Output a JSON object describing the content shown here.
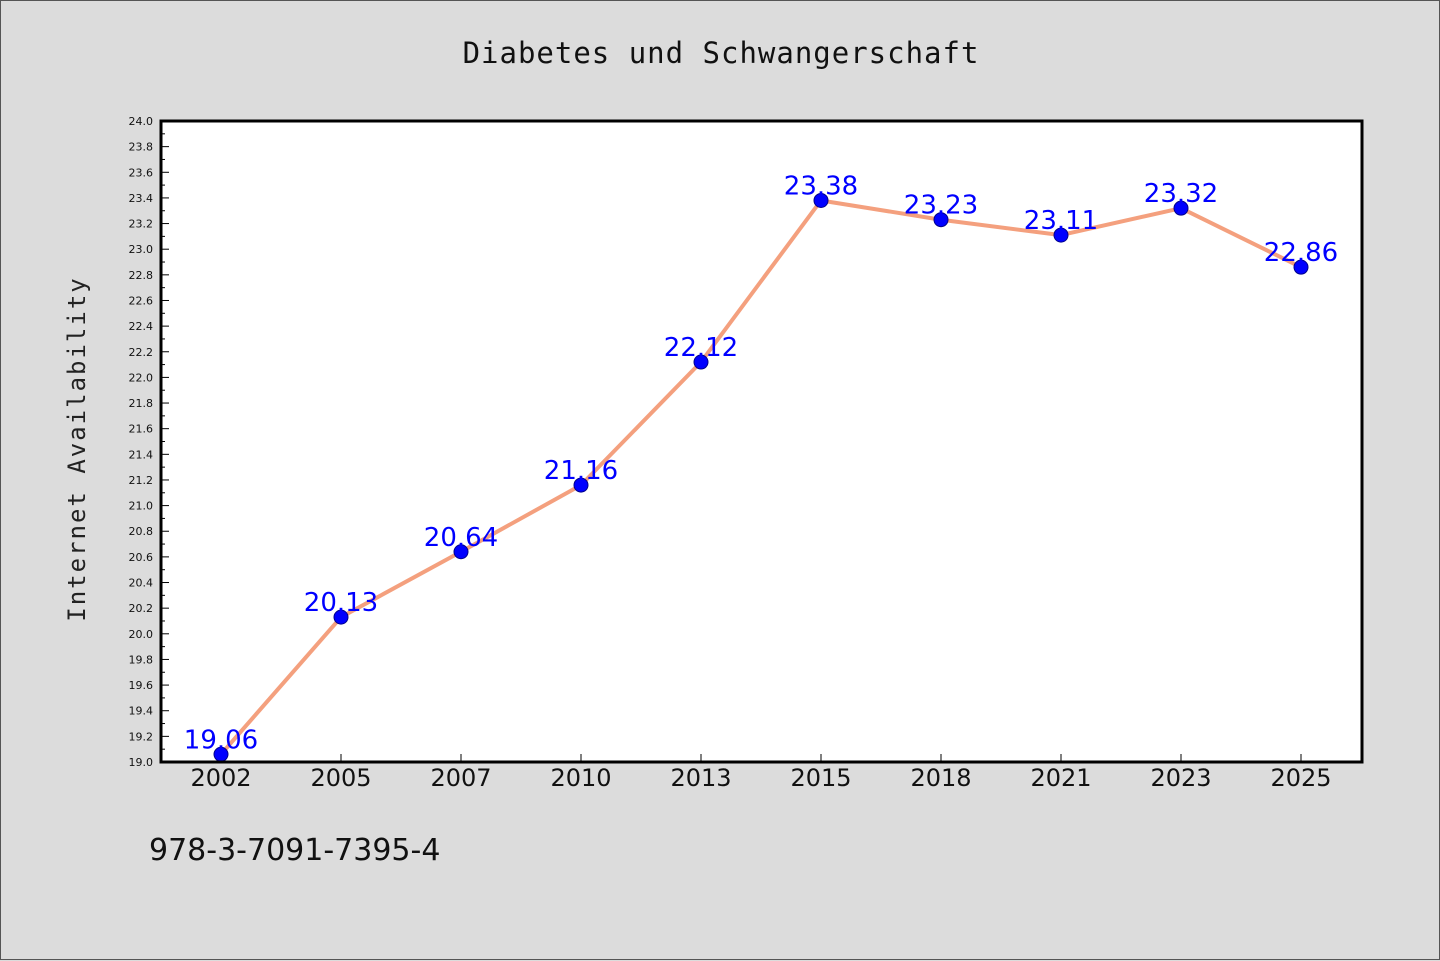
{
  "chart_data": {
    "type": "line",
    "title": "Diabetes und Schwangerschaft",
    "xlabel": "",
    "ylabel": "Internet Availability",
    "categories": [
      "2002",
      "2005",
      "2007",
      "2010",
      "2013",
      "2015",
      "2018",
      "2021",
      "2023",
      "2025"
    ],
    "series": [
      {
        "values": [
          19.06,
          20.13,
          20.64,
          21.16,
          22.12,
          23.38,
          23.23,
          23.11,
          23.32,
          22.86
        ]
      }
    ],
    "data_labels": [
      "19.06",
      "20.13",
      "20.64",
      "21.16",
      "22.12",
      "23.38",
      "23.23",
      "23.11",
      "23.32",
      "22.86"
    ],
    "ylim": [
      19.0,
      24.0
    ],
    "yticks": [
      "19.0",
      "19.2",
      "19.4",
      "19.6",
      "19.8",
      "20.0",
      "20.2",
      "20.4",
      "20.6",
      "20.8",
      "21.0",
      "21.2",
      "21.4",
      "21.6",
      "21.8",
      "22.0",
      "22.2",
      "22.4",
      "22.6",
      "22.8",
      "23.0",
      "23.2",
      "23.4",
      "23.6",
      "23.8",
      "24.0"
    ],
    "grid": false,
    "line_color": "#f4a07e",
    "marker_color": "#0000ff",
    "label_color": "#0000ff",
    "background_color": "#dcdcdc"
  },
  "footer": {
    "isbn": "978-3-7091-7395-4"
  }
}
